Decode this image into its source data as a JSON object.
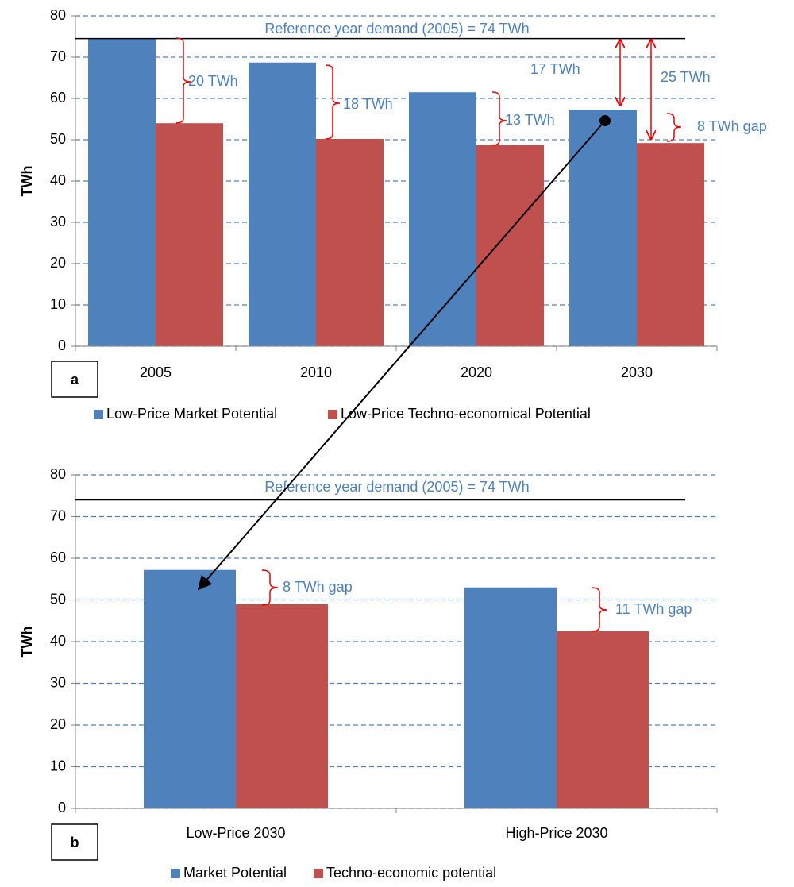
{
  "chart_data": [
    {
      "type": "bar",
      "panel_label": "a",
      "y_label": "TWh",
      "categories": [
        "2005",
        "2010",
        "2020",
        "2030"
      ],
      "series": [
        {
          "name": "Low-Price Market Potential",
          "color": "#4f81bd",
          "values": [
            74.5,
            68.7,
            61.5,
            57.3
          ]
        },
        {
          "name": "Low-Price Techno-economical Potential",
          "color": "#c0504d",
          "values": [
            54.0,
            50.2,
            48.7,
            49.2
          ]
        }
      ],
      "ylim": [
        0,
        80
      ],
      "yticks": [
        0,
        10,
        20,
        30,
        40,
        50,
        60,
        70,
        80
      ],
      "grid": true,
      "reference_line": {
        "label": "Reference year demand (2005) = 74 TWh",
        "value": 74.5
      },
      "annotations": [
        {
          "text": "20 TWh"
        },
        {
          "text": "18 TWh"
        },
        {
          "text": "13 TWh"
        },
        {
          "text": "17 TWh"
        },
        {
          "text": "25 TWh"
        },
        {
          "text": "8 TWh gap"
        }
      ]
    },
    {
      "type": "bar",
      "panel_label": "b",
      "y_label": "TWh",
      "categories": [
        "Low-Price 2030",
        "High-Price 2030"
      ],
      "series": [
        {
          "name": "Market Potential",
          "color": "#4f81bd",
          "values": [
            57.2,
            53.0
          ]
        },
        {
          "name": "Techno-economic potential",
          "color": "#c0504d",
          "values": [
            49.0,
            42.5
          ]
        }
      ],
      "ylim": [
        0,
        80
      ],
      "yticks": [
        0,
        10,
        20,
        30,
        40,
        50,
        60,
        70,
        80
      ],
      "grid": true,
      "reference_line": {
        "label": "Reference year demand (2005) = 74 TWh",
        "value": 74
      },
      "annotations": [
        {
          "text": "8 TWh gap"
        },
        {
          "text": "11 TWh gap"
        }
      ]
    }
  ]
}
